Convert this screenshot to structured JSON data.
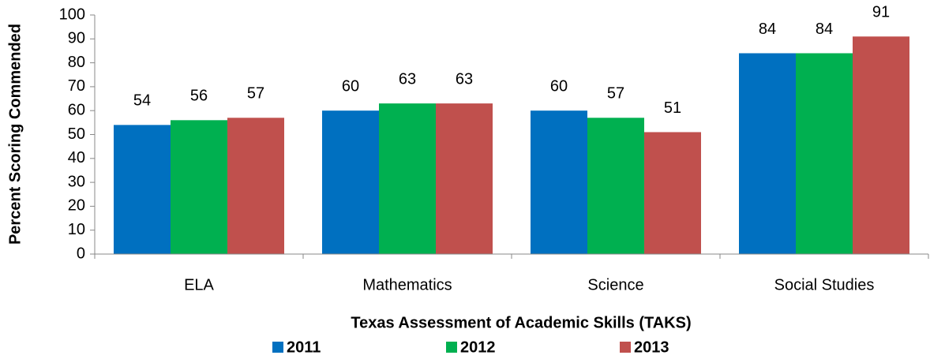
{
  "chart_data": {
    "type": "bar",
    "y_label": "Percent Scoring Commended",
    "x_label": "Texas Assessment of Academic Skills (TAKS)",
    "categories": [
      "ELA",
      "Mathematics",
      "Science",
      "Social Studies"
    ],
    "series": [
      {
        "name": "2011",
        "color": "#0070c0",
        "values": [
          54,
          60,
          60,
          84
        ]
      },
      {
        "name": "2012",
        "color": "#00b050",
        "values": [
          56,
          63,
          57,
          84
        ]
      },
      {
        "name": "2013",
        "color": "#c0504d",
        "values": [
          57,
          63,
          51,
          91
        ]
      }
    ],
    "ylim": [
      0,
      100
    ],
    "yticks": [
      0,
      10,
      20,
      30,
      40,
      50,
      60,
      70,
      80,
      90,
      100
    ],
    "legend": "bottom"
  }
}
